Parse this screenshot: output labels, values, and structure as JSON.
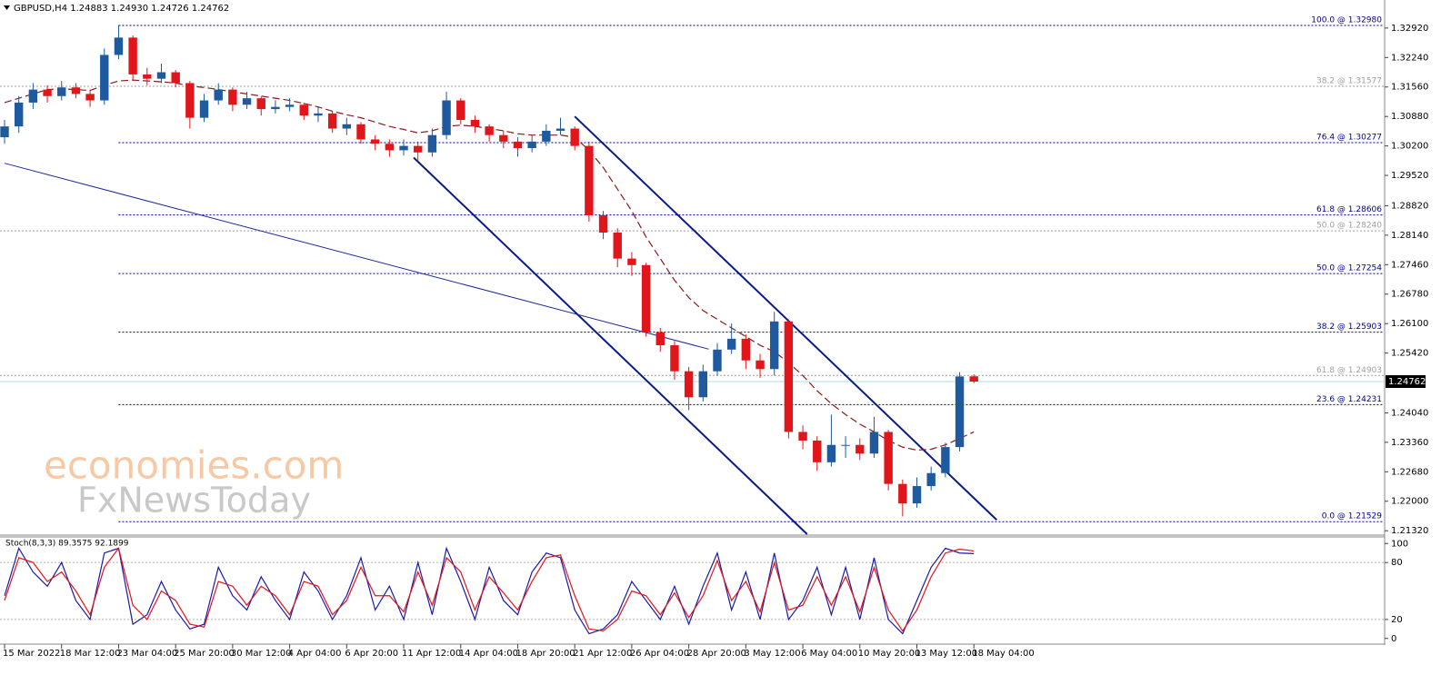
{
  "chart_data": [
    {
      "type": "candlestick",
      "title": "GBPUSD,H4  1.24883 1.24930 1.24726 1.24762",
      "up_color": "#1f5a9e",
      "down_color": "#e0161b",
      "open": [
        1.304,
        1.3065,
        1.312,
        1.315,
        1.3135,
        1.3155,
        1.314,
        1.3125,
        1.323,
        1.327,
        1.3185,
        1.3175,
        1.319,
        1.3165,
        1.3085,
        1.3125,
        1.315,
        1.3115,
        1.313,
        1.3105,
        1.311,
        1.3115,
        1.309,
        1.3095,
        1.306,
        1.307,
        1.3035,
        1.3025,
        1.301,
        1.302,
        1.3005,
        1.3045,
        1.3125,
        1.308,
        1.3065,
        1.3045,
        1.303,
        1.3015,
        1.303,
        1.3055,
        1.306,
        1.302,
        1.286,
        1.282,
        1.276,
        1.2745,
        1.259,
        1.256,
        1.25,
        1.244,
        1.25,
        1.255,
        1.2575,
        1.2525,
        1.2505,
        1.2615,
        1.236,
        1.234,
        1.229,
        1.233,
        1.233,
        1.231,
        1.236,
        1.224,
        1.2195,
        1.2235,
        1.2265,
        1.2325,
        1.24883
      ],
      "high": [
        1.308,
        1.3135,
        1.3165,
        1.316,
        1.317,
        1.3165,
        1.315,
        1.3245,
        1.3298,
        1.3275,
        1.32,
        1.321,
        1.3195,
        1.317,
        1.314,
        1.3165,
        1.3155,
        1.3145,
        1.3135,
        1.3125,
        1.313,
        1.312,
        1.311,
        1.31,
        1.3085,
        1.3075,
        1.3045,
        1.3035,
        1.3035,
        1.303,
        1.306,
        1.3145,
        1.313,
        1.309,
        1.307,
        1.3055,
        1.304,
        1.3045,
        1.307,
        1.3085,
        1.3065,
        1.303,
        1.287,
        1.283,
        1.2775,
        1.275,
        1.26,
        1.257,
        1.251,
        1.2515,
        1.2565,
        1.261,
        1.2585,
        1.254,
        1.2637,
        1.262,
        1.2375,
        1.235,
        1.24,
        1.235,
        1.2345,
        1.2395,
        1.2365,
        1.225,
        1.2255,
        1.228,
        1.2335,
        1.2498,
        1.2493
      ],
      "low": [
        1.3025,
        1.305,
        1.3105,
        1.312,
        1.3125,
        1.313,
        1.311,
        1.3115,
        1.322,
        1.317,
        1.316,
        1.3165,
        1.3155,
        1.306,
        1.3075,
        1.3115,
        1.31,
        1.3105,
        1.309,
        1.3095,
        1.31,
        1.308,
        1.3075,
        1.305,
        1.3045,
        1.3025,
        1.301,
        1.2995,
        1.2998,
        1.2985,
        1.2995,
        1.3035,
        1.307,
        1.305,
        1.303,
        1.3015,
        1.2995,
        1.3005,
        1.302,
        1.3045,
        1.301,
        1.2845,
        1.2805,
        1.274,
        1.272,
        1.258,
        1.2545,
        1.248,
        1.241,
        1.243,
        1.249,
        1.254,
        1.2505,
        1.2485,
        1.249,
        1.2345,
        1.232,
        1.227,
        1.228,
        1.23,
        1.2295,
        1.23,
        1.2225,
        1.2165,
        1.2185,
        1.2225,
        1.2255,
        1.2315,
        1.24726
      ],
      "close": [
        1.3065,
        1.312,
        1.315,
        1.3135,
        1.3155,
        1.314,
        1.3125,
        1.323,
        1.327,
        1.3185,
        1.3175,
        1.319,
        1.3165,
        1.3085,
        1.3125,
        1.315,
        1.3115,
        1.313,
        1.3105,
        1.311,
        1.3115,
        1.309,
        1.3095,
        1.306,
        1.307,
        1.3035,
        1.3025,
        1.301,
        1.302,
        1.3005,
        1.3045,
        1.3125,
        1.308,
        1.3065,
        1.3045,
        1.303,
        1.3015,
        1.303,
        1.3055,
        1.306,
        1.302,
        1.286,
        1.282,
        1.276,
        1.2745,
        1.259,
        1.256,
        1.25,
        1.244,
        1.25,
        1.255,
        1.2575,
        1.2525,
        1.2505,
        1.2615,
        1.236,
        1.234,
        1.229,
        1.233,
        1.233,
        1.231,
        1.236,
        1.224,
        1.2195,
        1.2235,
        1.2265,
        1.2325,
        1.2488,
        1.24762
      ],
      "ma": {
        "color": "#8b1a1a",
        "values": [
          1.312,
          1.313,
          1.314,
          1.315,
          1.3152,
          1.315,
          1.3148,
          1.316,
          1.317,
          1.3172,
          1.317,
          1.3168,
          1.3165,
          1.3158,
          1.3155,
          1.315,
          1.3145,
          1.314,
          1.3135,
          1.313,
          1.3125,
          1.3118,
          1.311,
          1.31,
          1.3092,
          1.3085,
          1.3075,
          1.3065,
          1.3058,
          1.305,
          1.3055,
          1.3065,
          1.3068,
          1.3065,
          1.306,
          1.3055,
          1.3048,
          1.3045,
          1.3045,
          1.3045,
          1.304,
          1.301,
          1.297,
          1.292,
          1.287,
          1.281,
          1.276,
          1.271,
          1.267,
          1.264,
          1.262,
          1.26,
          1.258,
          1.256,
          1.2545,
          1.252,
          1.249,
          1.2455,
          1.2425,
          1.24,
          1.2378,
          1.236,
          1.234,
          1.2325,
          1.2318,
          1.232,
          1.233,
          1.2345,
          1.236
        ]
      },
      "levels": [
        {
          "label": "100.0 @ 1.32980",
          "value": 1.3298,
          "color": "#00008b",
          "from": 8
        },
        {
          "label": "38.2 @ 1.31577",
          "value": 1.31577,
          "color": "#a0a0a0",
          "from": 0
        },
        {
          "label": "76.4 @ 1.30277",
          "value": 1.30277,
          "color": "#00008b",
          "from": 8
        },
        {
          "label": "61.8 @ 1.28606",
          "value": 1.28606,
          "color": "#00008b",
          "from": 8
        },
        {
          "label": "50.0 @ 1.28240",
          "value": 1.2824,
          "color": "#a0a0a0",
          "from": 0
        },
        {
          "label": "50.0 @ 1.27254",
          "value": 1.27254,
          "color": "#00008b",
          "from": 8
        },
        {
          "label": "38.2 @ 1.25903",
          "value": 1.25903,
          "color": "#00008b",
          "from": 8
        },
        {
          "label": "61.8 @ 1.24903",
          "value": 1.24903,
          "color": "#a0a0a0",
          "from": 0
        },
        {
          "label": "23.6 @ 1.24231",
          "value": 1.24231,
          "color": "#00008b",
          "from": 8
        },
        {
          "label": "0.0 @ 1.21529",
          "value": 1.21529,
          "color": "#00008b",
          "from": 8
        }
      ],
      "trendlines": [
        {
          "color": "#1a2a9a",
          "from": [
            0,
            1.298
          ],
          "to": [
            49.4,
            1.2551
          ]
        },
        {
          "color": "#0a1a8a",
          "from": [
            40,
            1.3088
          ],
          "to": [
            69.6,
            1.2157
          ]
        },
        {
          "color": "#0a1a8a",
          "from": [
            28.7,
            1.2993
          ],
          "to": [
            56.3,
            1.2124
          ]
        }
      ],
      "current_price": {
        "value": 1.24762,
        "label": "1.24762"
      },
      "annotations": [
        "economies.com",
        "FxNewsToday"
      ],
      "xlim": [
        -0.32,
        96.75
      ],
      "xticks": [
        {
          "value": 0,
          "label": "15 Mar 2022"
        },
        {
          "value": 4,
          "label": "18 Mar 12:00"
        },
        {
          "value": 8,
          "label": "23 Mar 04:00"
        },
        {
          "value": 12,
          "label": "25 Mar 20:00"
        },
        {
          "value": 16,
          "label": "30 Mar 12:00"
        },
        {
          "value": 20,
          "label": "4 Apr 04:00"
        },
        {
          "value": 24,
          "label": "6 Apr 20:00"
        },
        {
          "value": 28,
          "label": "11 Apr 12:00"
        },
        {
          "value": 32,
          "label": "14 Apr 04:00"
        },
        {
          "value": 36,
          "label": "18 Apr 20:00"
        },
        {
          "value": 40,
          "label": "21 Apr 12:00"
        },
        {
          "value": 44,
          "label": "26 Apr 04:00"
        },
        {
          "value": 48,
          "label": "28 Apr 20:00"
        },
        {
          "value": 52,
          "label": "3 May 12:00"
        },
        {
          "value": 56,
          "label": "6 May 04:00"
        },
        {
          "value": 60,
          "label": "10 May 20:00"
        },
        {
          "value": 64,
          "label": "13 May 12:00"
        },
        {
          "value": 68,
          "label": "18 May 04:00"
        }
      ],
      "ylim": [
        1.2124,
        1.3319
      ],
      "yticks": [
        {
          "value": 1.3292,
          "label": "1.32920"
        },
        {
          "value": 1.3224,
          "label": "1.32240"
        },
        {
          "value": 1.3156,
          "label": "1.31560"
        },
        {
          "value": 1.3088,
          "label": "1.30880"
        },
        {
          "value": 1.302,
          "label": "1.30200"
        },
        {
          "value": 1.2952,
          "label": "1.29520"
        },
        {
          "value": 1.2882,
          "label": "1.28820"
        },
        {
          "value": 1.2814,
          "label": "1.28140"
        },
        {
          "value": 1.2746,
          "label": "1.27460"
        },
        {
          "value": 1.2678,
          "label": "1.26780"
        },
        {
          "value": 1.261,
          "label": "1.26100"
        },
        {
          "value": 1.2542,
          "label": "1.25420"
        },
        {
          "value": 1.2404,
          "label": "1.24040"
        },
        {
          "value": 1.2336,
          "label": "1.23360"
        },
        {
          "value": 1.2268,
          "label": "1.22680"
        },
        {
          "value": 1.22,
          "label": "1.22000"
        },
        {
          "value": 1.2132,
          "label": "1.21320"
        }
      ]
    },
    {
      "type": "line",
      "title": "Stoch(8,3,3) 89.3575 92.1899",
      "series": [
        {
          "color": "#1a1aa8",
          "values": [
            45,
            95,
            70,
            55,
            80,
            40,
            20,
            90,
            95,
            15,
            25,
            60,
            30,
            10,
            15,
            75,
            45,
            30,
            65,
            40,
            20,
            70,
            50,
            20,
            45,
            85,
            30,
            55,
            20,
            80,
            25,
            95,
            60,
            20,
            75,
            40,
            25,
            70,
            90,
            85,
            30,
            5,
            10,
            25,
            60,
            40,
            20,
            55,
            15,
            55,
            90,
            30,
            70,
            20,
            90,
            20,
            40,
            75,
            25,
            75,
            20,
            85,
            20,
            5,
            40,
            75,
            95,
            90,
            89.3575
          ]
        },
        {
          "color": "#e0161b",
          "values": [
            40,
            85,
            80,
            60,
            70,
            50,
            25,
            75,
            95,
            35,
            20,
            50,
            40,
            15,
            12,
            60,
            55,
            35,
            55,
            45,
            25,
            60,
            55,
            25,
            40,
            75,
            45,
            45,
            28,
            70,
            35,
            85,
            70,
            30,
            65,
            48,
            30,
            60,
            85,
            88,
            45,
            10,
            8,
            20,
            50,
            45,
            25,
            48,
            22,
            45,
            82,
            40,
            60,
            28,
            80,
            30,
            35,
            65,
            35,
            65,
            28,
            75,
            30,
            8,
            30,
            65,
            90,
            94,
            92.1899
          ]
        }
      ],
      "levels": [
        80,
        20
      ],
      "ylim": [
        -5,
        106
      ],
      "yticks": [
        100,
        80,
        20,
        0
      ]
    }
  ]
}
